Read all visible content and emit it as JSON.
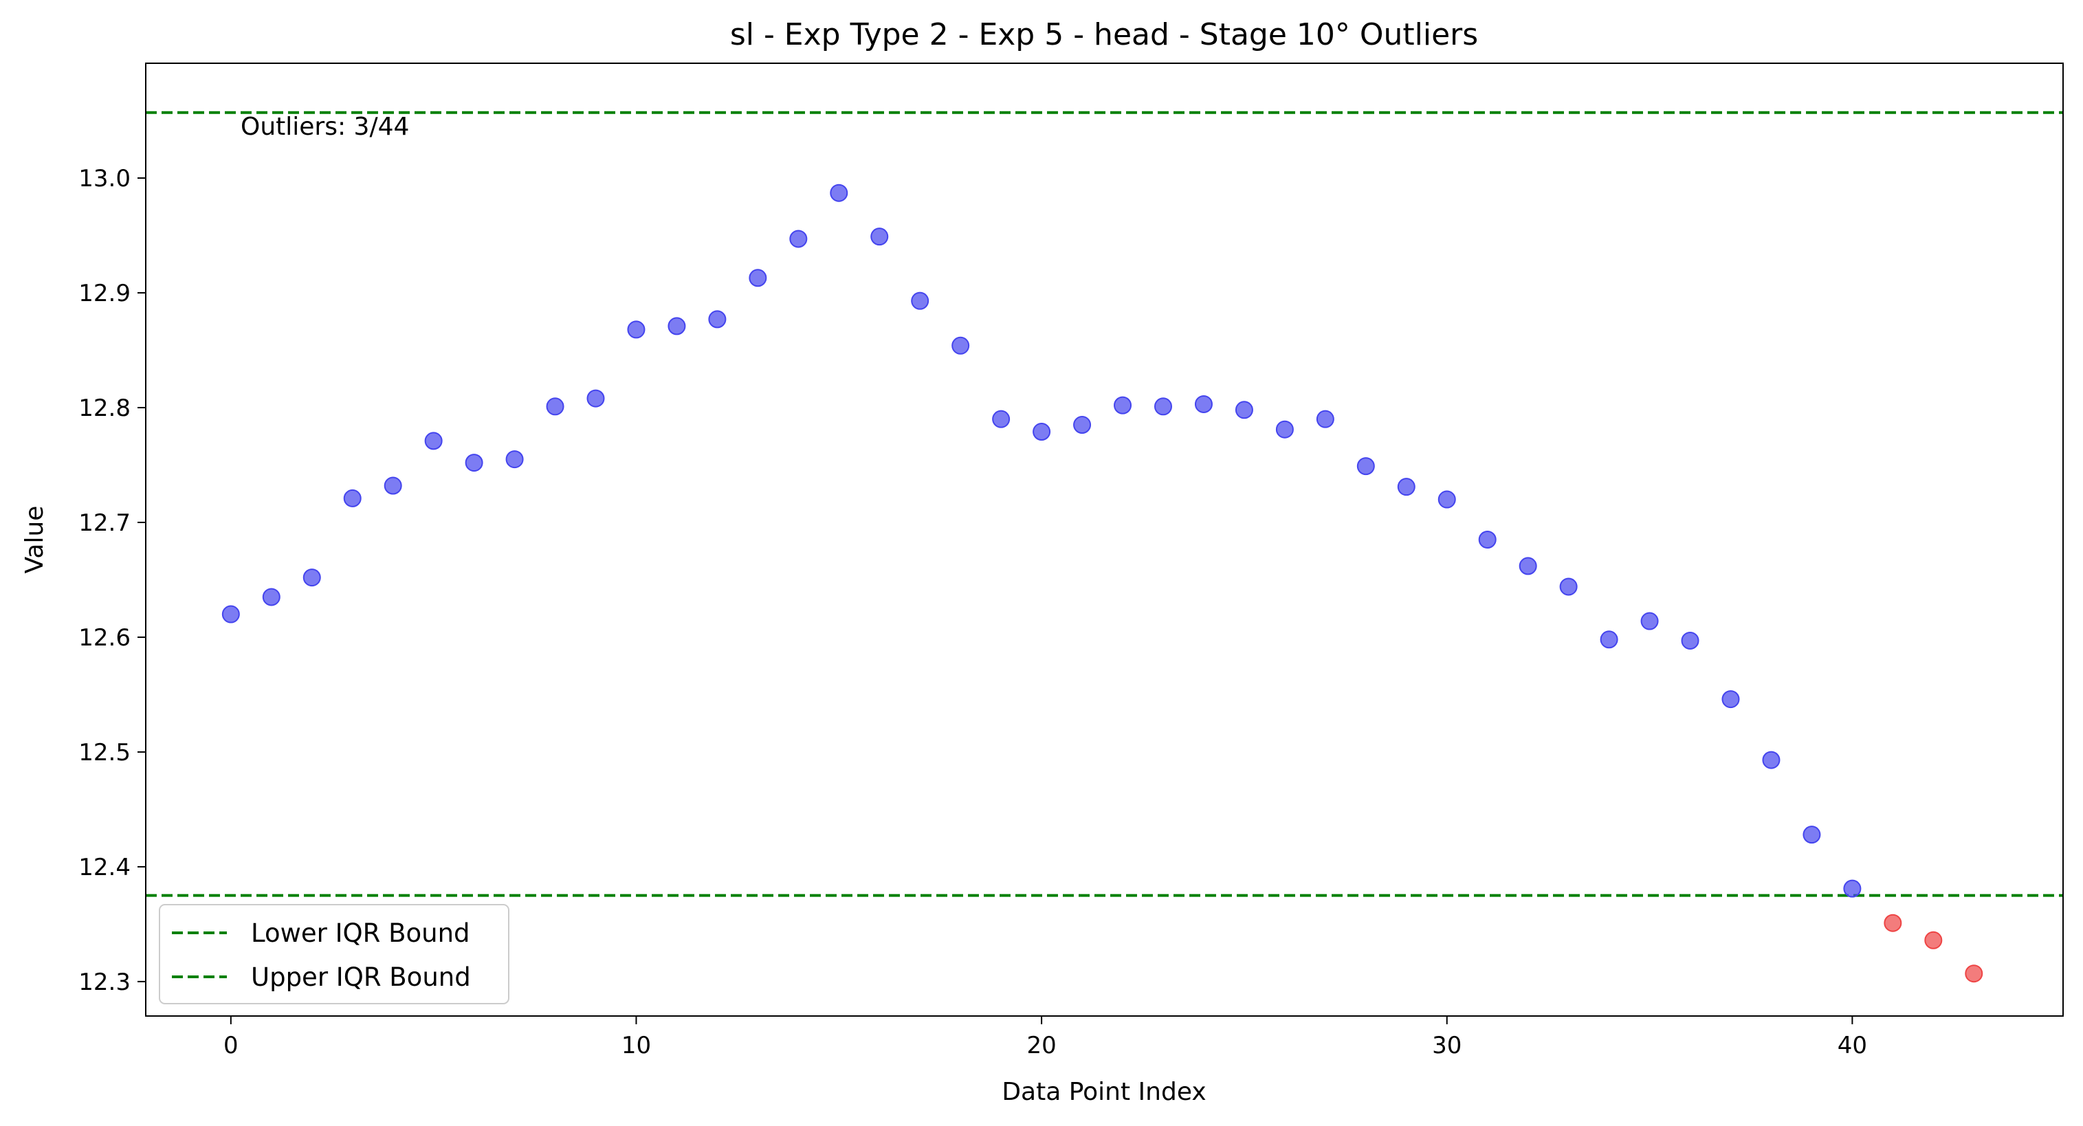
{
  "chart_data": {
    "type": "scatter",
    "title": "sl - Exp Type 2 - Exp 5 - head - Stage 10° Outliers",
    "xlabel": "Data Point Index",
    "ylabel": "Value",
    "xlim": [
      -2.1,
      45.2
    ],
    "ylim": [
      12.27,
      13.1
    ],
    "xticks": [
      0,
      10,
      20,
      30,
      40
    ],
    "xtick_labels": [
      "0",
      "10",
      "20",
      "30",
      "40"
    ],
    "yticks": [
      12.3,
      12.4,
      12.5,
      12.6,
      12.7,
      12.8,
      12.9,
      13.0
    ],
    "ytick_labels": [
      "12.3",
      "12.4",
      "12.5",
      "12.6",
      "12.7",
      "12.8",
      "12.9",
      "13.0"
    ],
    "grid": false,
    "legend_position": "lower-left",
    "series": [
      {
        "role": "inlier",
        "color": "#4444ee",
        "x": [
          0,
          1,
          2,
          3,
          4,
          5,
          6,
          7,
          8,
          9,
          10,
          11,
          12,
          13,
          14,
          15,
          16,
          17,
          18,
          19,
          20,
          21,
          22,
          23,
          24,
          25,
          26,
          27,
          28,
          29,
          30,
          31,
          32,
          33,
          34,
          35,
          36,
          37,
          38,
          39,
          40
        ],
        "y": [
          12.62,
          12.635,
          12.652,
          12.721,
          12.732,
          12.771,
          12.752,
          12.755,
          12.801,
          12.808,
          12.868,
          12.871,
          12.877,
          12.913,
          12.947,
          12.987,
          12.949,
          12.893,
          12.854,
          12.79,
          12.779,
          12.785,
          12.802,
          12.801,
          12.803,
          12.798,
          12.781,
          12.79,
          12.749,
          12.731,
          12.72,
          12.685,
          12.662,
          12.644,
          12.598,
          12.614,
          12.597,
          12.546,
          12.493,
          12.428,
          12.381
        ]
      },
      {
        "role": "outlier",
        "color": "#ee4444",
        "x": [
          41,
          42,
          43
        ],
        "y": [
          12.351,
          12.336,
          12.307
        ]
      }
    ],
    "lines": [
      {
        "name": "Lower IQR Bound",
        "y": 12.375,
        "color": "#008000",
        "style": "dashed"
      },
      {
        "name": "Upper IQR Bound",
        "y": 13.057,
        "color": "#008000",
        "style": "dashed"
      }
    ],
    "annotation": "Outliers: 3/44"
  }
}
